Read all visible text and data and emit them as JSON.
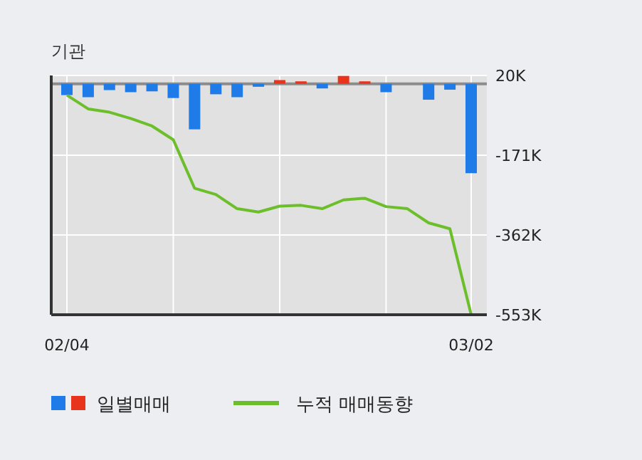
{
  "chart_data": {
    "type": "bar",
    "title": "기관",
    "categories": [
      "02/04",
      null,
      null,
      null,
      null,
      null,
      null,
      null,
      null,
      null,
      null,
      null,
      null,
      null,
      null,
      null,
      null,
      null,
      null,
      "03/02"
    ],
    "series": [
      {
        "name": "일별매매",
        "colors": [
          "#1f7be8",
          "#1f7be8",
          "#1f7be8",
          "#1f7be8",
          "#1f7be8",
          "#1f7be8",
          "#1f7be8",
          "#1f7be8",
          "#1f7be8",
          "#1f7be8",
          "#e8341c",
          "#e8341c",
          "#1f7be8",
          "#e8341c",
          "#e8341c",
          "#1f7be8",
          "#1f7be8",
          "#1f7be8",
          "#1f7be8",
          "#1f7be8"
        ],
        "values": [
          -27,
          -32,
          -15,
          -20,
          -18,
          -34,
          -109,
          -25,
          -32,
          -7,
          9,
          6,
          -11,
          19,
          6,
          -20,
          0,
          -38,
          -14,
          -214
        ]
      },
      {
        "name": "누적 매매동향",
        "type": "line",
        "color": "#6cbf2a",
        "values": [
          -27,
          -60,
          -68,
          -83,
          -101,
          -134,
          -250,
          -265,
          -299,
          -307,
          -293,
          -291,
          -299,
          -278,
          -274,
          -294,
          -299,
          -333,
          -347,
          -553
        ]
      }
    ],
    "ylim": [
      -553,
      20
    ],
    "yticks": [
      {
        "value": 20,
        "label": "20K"
      },
      {
        "value": -171,
        "label": "-171K"
      },
      {
        "value": -362,
        "label": "-362K"
      },
      {
        "value": -553,
        "label": "-553K"
      }
    ],
    "grid": true,
    "legend": "bottom"
  }
}
